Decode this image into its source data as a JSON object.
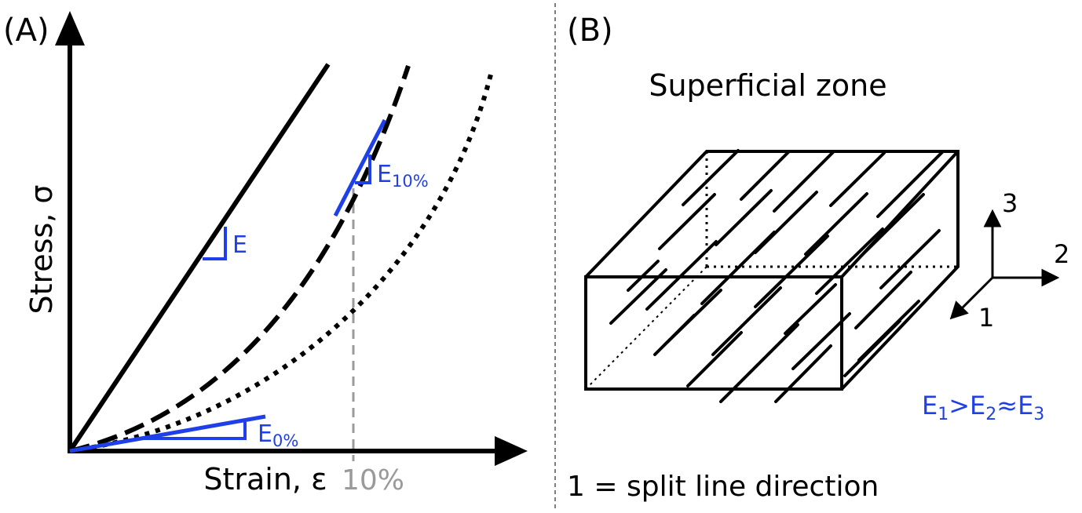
{
  "panel_a": {
    "label": "(A)",
    "y_axis_label": "Stress, σ",
    "x_axis_label": "Strain, ε",
    "x_marker_label": "10%",
    "slope_labels": {
      "linear": "E",
      "tangent_10": {
        "base": "E",
        "sub": "10%"
      },
      "tangent_0": {
        "base": "E",
        "sub": "0%"
      }
    }
  },
  "panel_b": {
    "label": "(B)",
    "zone_title": "Superficial zone",
    "axes": {
      "one": "1",
      "two": "2",
      "three": "3"
    },
    "relation": {
      "e": "E",
      "s1": "1",
      "gt": ">",
      "s2": "2",
      "approx": "≈",
      "s3": "3"
    },
    "footnote": "1 = split line direction"
  },
  "colors": {
    "ink": "#000000",
    "accent": "#1f3fe8",
    "guide": "#9a9a9a"
  }
}
